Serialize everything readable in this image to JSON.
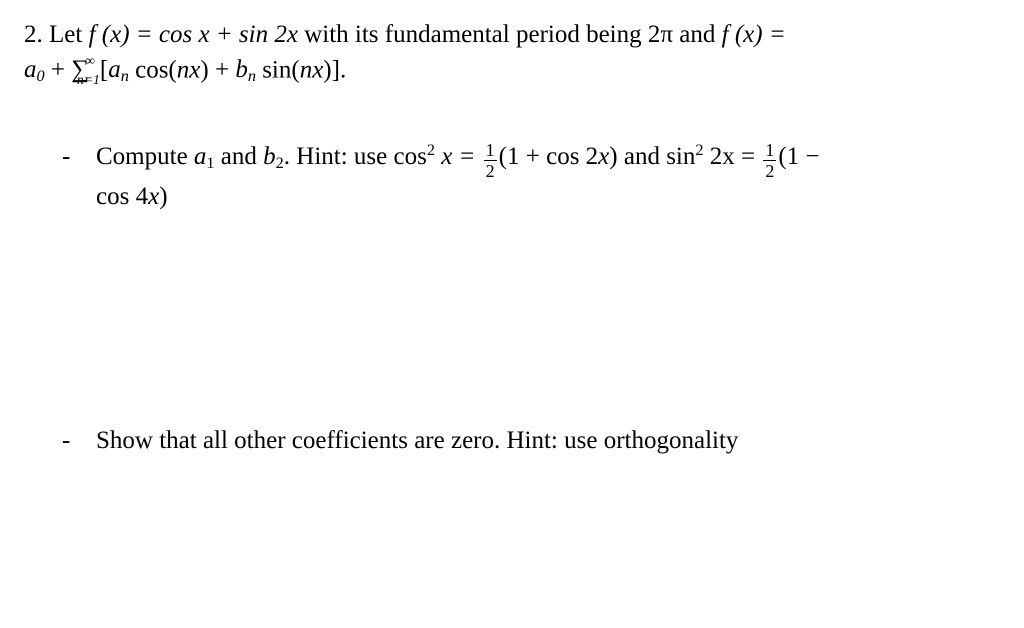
{
  "problem": {
    "number": "2.",
    "stmt_line1_pre": "Let ",
    "stmt_fx": "f (x) = cos x + sin 2x",
    "stmt_line1_mid": " with its fundamental period being 2",
    "pi": "π",
    "stmt_line1_post": " and ",
    "stmt_fx_eq": "f (x) =",
    "stmt_line2_a0": "a",
    "stmt_line2_a0sub": "0",
    "stmt_plus": " + ",
    "sum_symbol": "∑",
    "sum_upper": "∞",
    "sum_lower": "n=1",
    "sum_open": "[",
    "sum_an": "a",
    "sum_an_sub": "n",
    "sum_cos": " cos(",
    "sum_nx1": "nx",
    "sum_close1": ") + ",
    "sum_bn": "b",
    "sum_bn_sub": "n",
    "sum_sin": " sin(",
    "sum_nx2": "nx",
    "sum_close2": ")].",
    "bullets": [
      {
        "dash": "-",
        "line1_pre": "Compute ",
        "a1": "a",
        "a1_sub": "1",
        "and": " and ",
        "b2": "b",
        "b2_sub": "2",
        "hint_pre": ". Hint: use cos",
        "sq1": "2",
        "x_eq": " x = ",
        "half1_num": "1",
        "half1_den": "2",
        "paren1": "(1 + cos 2",
        "x1": "x",
        "paren1_close": ") and sin",
        "sq2": "2",
        "two_x": " 2x = ",
        "half2_num": "1",
        "half2_den": "2",
        "paren2": "(1 −",
        "line2": "cos 4",
        "x2": "x",
        "line2_close": ")"
      },
      {
        "dash": "-",
        "text": "Show that all other coefficients are zero. Hint: use orthogonality"
      }
    ]
  }
}
